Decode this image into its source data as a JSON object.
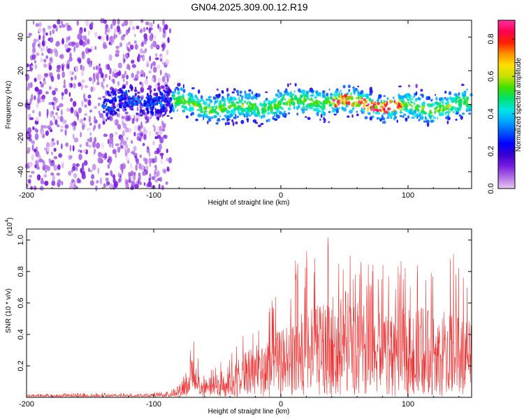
{
  "title": "GN04.2025.309.00.12.R19",
  "chart_data": [
    {
      "type": "heatmap",
      "name": "spectrogram",
      "title": "GN04.2025.309.00.12.R19",
      "xlabel": "Height of straight line (km)",
      "ylabel": "Frequency (Hz)",
      "xlim": [
        -200,
        150
      ],
      "ylim": [
        -50,
        50
      ],
      "x_ticks": [
        -200,
        -100,
        0,
        100
      ],
      "x_tick_labels": [
        "-200",
        "-100",
        "0",
        "100"
      ],
      "y_ticks": [
        -40,
        -20,
        0,
        20,
        40
      ],
      "y_tick_labels": [
        "-40",
        "-20",
        "0",
        "20",
        "40"
      ],
      "colorbar": {
        "label": "Normalized spectral amplitude",
        "range": [
          0,
          0.9
        ],
        "ticks": [
          0,
          0.2,
          0.4,
          0.6,
          0.8
        ],
        "tick_labels": [
          "0.0",
          "0.2",
          "0.4",
          "0.6",
          "0.8"
        ],
        "colors": [
          "#e8c6f2",
          "#b06fe6",
          "#7a1de0",
          "#3a00d0",
          "#0000ff",
          "#0055ff",
          "#00a8ff",
          "#00e5e5",
          "#00e070",
          "#40e000",
          "#c8e000",
          "#ffe000",
          "#ff9000",
          "#ff2000",
          "#ff0050",
          "#ff30a0"
        ]
      },
      "noise_region_x": [
        -200,
        -87
      ],
      "band_center_hz": 0,
      "band_halfwidth_hz": 10,
      "peak_amplitude_region_x": [
        40,
        95
      ],
      "peak_amplitude": 0.9
    },
    {
      "type": "line",
      "name": "snr",
      "xlabel": "Height of straight line (km)",
      "ylabel": "SNR (10 * v/v)",
      "y_multiplier_label": "(x10",
      "y_multiplier_exp": "4",
      "y_multiplier_close": ")",
      "xlim": [
        -200,
        150
      ],
      "ylim": [
        0,
        1.07
      ],
      "x_ticks": [
        -200,
        -100,
        0,
        100
      ],
      "x_tick_labels": [
        "-200",
        "-100",
        "0",
        "100"
      ],
      "y_ticks": [
        0.2,
        0.4,
        0.6,
        0.8,
        1.0
      ],
      "y_tick_labels": [
        "0.2",
        "0.4",
        "0.6",
        "0.8",
        "1.0"
      ],
      "color": "#ee3333",
      "series": [
        {
          "name": "SNR",
          "x": [
            -200,
            -150,
            -100,
            -90,
            -80,
            -75,
            -70,
            -65,
            -60,
            -50,
            -40,
            -30,
            -20,
            -10,
            0,
            10,
            20,
            30,
            40,
            50,
            60,
            70,
            80,
            90,
            100,
            110,
            120,
            130,
            140,
            150
          ],
          "envelope_max": [
            0.02,
            0.03,
            0.03,
            0.04,
            0.08,
            0.18,
            0.4,
            0.25,
            0.15,
            0.2,
            0.3,
            0.4,
            0.5,
            0.6,
            0.68,
            0.9,
            0.96,
            0.99,
            1.06,
            1.05,
            0.95,
            0.85,
            0.92,
            0.88,
            0.85,
            0.9,
            0.9,
            0.96,
            0.95,
            0.9
          ],
          "envelope_typical": [
            0.01,
            0.01,
            0.015,
            0.02,
            0.05,
            0.1,
            0.15,
            0.09,
            0.07,
            0.09,
            0.12,
            0.16,
            0.2,
            0.23,
            0.25,
            0.3,
            0.32,
            0.35,
            0.38,
            0.4,
            0.38,
            0.36,
            0.35,
            0.34,
            0.33,
            0.34,
            0.33,
            0.32,
            0.3,
            0.3
          ]
        }
      ]
    }
  ]
}
